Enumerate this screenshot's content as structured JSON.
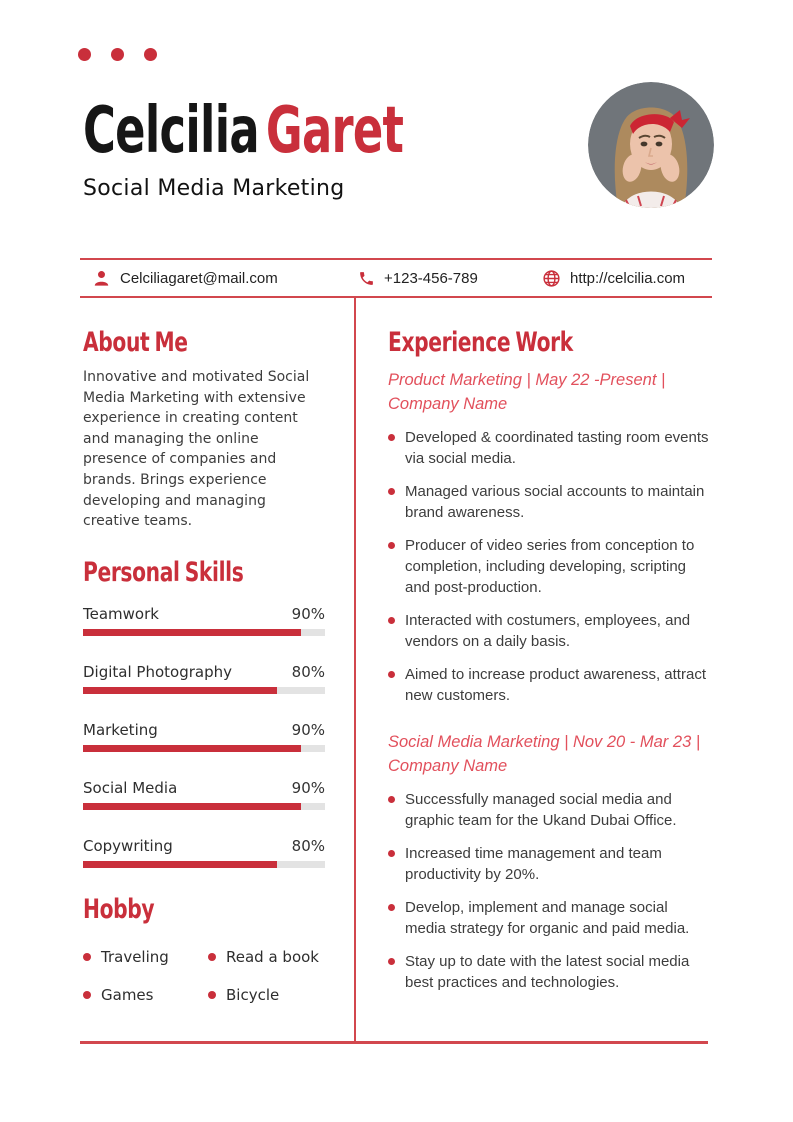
{
  "header": {
    "first_name": "Celcilia",
    "last_name": "Garet",
    "role": "Social Media Marketing"
  },
  "contact": {
    "email": "Celciliagaret@mail.com",
    "phone": "+123-456-789",
    "website": "http://celcilia.com"
  },
  "about": {
    "heading": "About Me",
    "text": "Innovative and motivated Social Media Marketing with extensive experience in creating content and managing the online presence of companies and brands. Brings experience developing and managing creative teams."
  },
  "skills": {
    "heading": "Personal Skills",
    "items": [
      {
        "label": "Teamwork",
        "percent": 90,
        "percent_label": "90%"
      },
      {
        "label": "Digital Photography",
        "percent": 80,
        "percent_label": "80%"
      },
      {
        "label": "Marketing",
        "percent": 90,
        "percent_label": "90%"
      },
      {
        "label": "Social Media",
        "percent": 90,
        "percent_label": "90%"
      },
      {
        "label": "Copywriting",
        "percent": 80,
        "percent_label": "80%"
      }
    ]
  },
  "hobby": {
    "heading": "Hobby",
    "items": [
      "Traveling",
      "Read a book",
      "Games",
      "Bicycle"
    ]
  },
  "experience": {
    "heading": "Experience Work",
    "jobs": [
      {
        "subtitle_lines": [
          "Product Marketing | May 22 -Present |",
          "Company Name"
        ],
        "bullets": [
          "Developed & coordinated tasting room events via social media.",
          "Managed various social accounts to maintain brand awareness.",
          "Producer of video series from conception to completion, including developing, scripting and post-production.",
          "Interacted with costumers, employees, and vendors on a daily basis.",
          "Aimed to increase product awareness, attract new customers."
        ]
      },
      {
        "subtitle_lines": [
          "Social Media Marketing | Nov 20 - Mar 23 |",
          "Company Name"
        ],
        "bullets": [
          "Successfully managed social media and graphic team for the Ukand Dubai Office.",
          "Increased time management and team productivity by 20%.",
          "Develop, implement and manage social media strategy for organic and paid media.",
          "Stay up to date with the latest social media best practices and technologies."
        ]
      }
    ]
  },
  "colors": {
    "accent": "#c92f3b",
    "accent_light": "#e2505c",
    "rule": "#d2474e",
    "track": "#e3e3e3",
    "photo_background": "#70757a"
  }
}
